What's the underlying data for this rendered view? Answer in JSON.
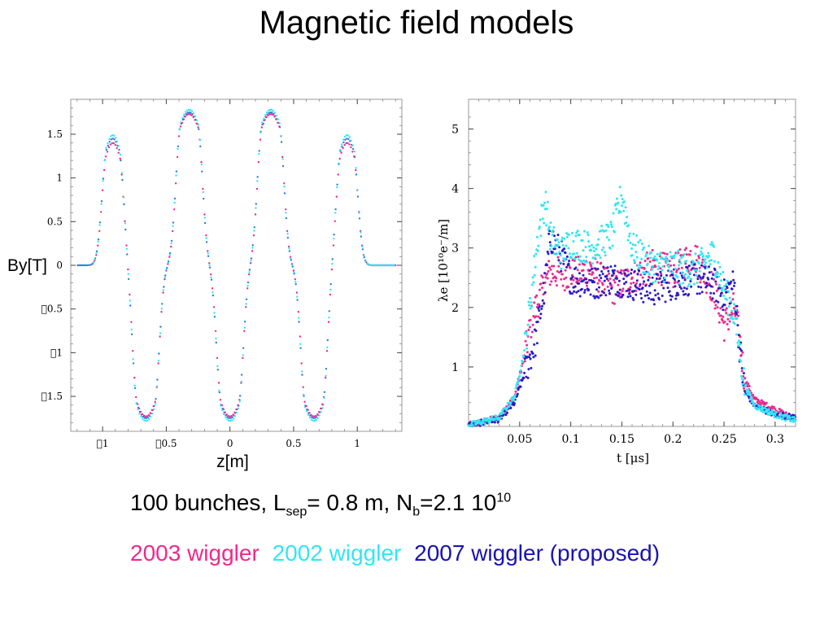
{
  "title": "Magnetic field models",
  "colors": {
    "pink": "#ee2a8c",
    "cyan": "#33e6f2",
    "blue": "#2a7ce6",
    "navy": "#2a1ac8"
  },
  "caption": {
    "line1": {
      "bunches": "100 bunches, L",
      "sep_sub": "sep",
      "sep_val": "= 0.8 m, N",
      "nb_sub": "b",
      "nb_val": "=2.1 10",
      "exp": "10"
    },
    "legend": [
      "2003 wiggler",
      "2002 wiggler",
      "2007 wiggler (proposed)"
    ]
  },
  "chart_data": [
    {
      "type": "scatter",
      "xlabel": "z[m]",
      "ylabel": "By[T]",
      "xlim": [
        -1.25,
        1.35
      ],
      "ylim": [
        -1.9,
        1.9
      ],
      "xticks": [
        -1,
        -0.5,
        0,
        0.5,
        1
      ],
      "xtick_labels": [
        "1",
        "0.5",
        "0",
        "0.5",
        "1"
      ],
      "yticks": [
        1.5,
        1,
        0.5,
        0,
        -0.5,
        -1,
        -1.5
      ],
      "ytick_labels": [
        "1.5",
        "1",
        "0.5",
        "0",
        "0.5",
        "1",
        "1.5"
      ],
      "grid": false,
      "series": [
        {
          "color": "pink",
          "peaks": [
            {
              "z": -0.92,
              "By": 1.4,
              "w": 0.045
            },
            {
              "z": -0.66,
              "By": -1.73,
              "w": 0.065
            },
            {
              "z": -0.32,
              "By": 1.73,
              "w": 0.065
            },
            {
              "z": 0.0,
              "By": -1.73,
              "w": 0.065
            },
            {
              "z": 0.32,
              "By": 1.73,
              "w": 0.065
            },
            {
              "z": 0.66,
              "By": -1.73,
              "w": 0.065
            },
            {
              "z": 0.92,
              "By": 1.4,
              "w": 0.045
            }
          ]
        },
        {
          "color": "cyan",
          "peaks": [
            {
              "z": -0.92,
              "By": 1.49,
              "w": 0.045
            },
            {
              "z": -0.66,
              "By": -1.78,
              "w": 0.065
            },
            {
              "z": -0.32,
              "By": 1.78,
              "w": 0.065
            },
            {
              "z": 0.0,
              "By": -1.78,
              "w": 0.065
            },
            {
              "z": 0.32,
              "By": 1.78,
              "w": 0.065
            },
            {
              "z": 0.66,
              "By": -1.78,
              "w": 0.065
            },
            {
              "z": 0.92,
              "By": 1.49,
              "w": 0.045
            }
          ]
        },
        {
          "color": "blue",
          "peaks": [
            {
              "z": -0.92,
              "By": 1.45,
              "w": 0.045
            },
            {
              "z": -0.66,
              "By": -1.75,
              "w": 0.065
            },
            {
              "z": -0.32,
              "By": 1.75,
              "w": 0.065
            },
            {
              "z": 0.0,
              "By": -1.75,
              "w": 0.065
            },
            {
              "z": 0.32,
              "By": 1.75,
              "w": 0.065
            },
            {
              "z": 0.66,
              "By": -1.75,
              "w": 0.065
            },
            {
              "z": 0.92,
              "By": 1.45,
              "w": 0.045
            }
          ]
        }
      ]
    },
    {
      "type": "scatter",
      "xlabel": "t [μs]",
      "ylabel": "λe [10¹⁰e⁻/m]",
      "xlim": [
        0,
        0.32
      ],
      "ylim": [
        0,
        5.5
      ],
      "xticks": [
        0.05,
        0.1,
        0.15,
        0.2,
        0.25,
        0.3
      ],
      "yticks": [
        1,
        2,
        3,
        4,
        5
      ],
      "grid": false,
      "series": [
        {
          "name": "2003 wiggler",
          "color": "pink",
          "points": [
            [
              0,
              0.02
            ],
            [
              0.03,
              0.15
            ],
            [
              0.045,
              0.5
            ],
            [
              0.055,
              1.2
            ],
            [
              0.062,
              1.8
            ],
            [
              0.07,
              2.2
            ],
            [
              0.08,
              2.6
            ],
            [
              0.1,
              2.55
            ],
            [
              0.12,
              2.65
            ],
            [
              0.14,
              2.3
            ],
            [
              0.16,
              2.5
            ],
            [
              0.18,
              2.7
            ],
            [
              0.2,
              2.6
            ],
            [
              0.22,
              2.9
            ],
            [
              0.24,
              2.3
            ],
            [
              0.25,
              1.7
            ],
            [
              0.26,
              2.0
            ],
            [
              0.265,
              1.5
            ],
            [
              0.27,
              0.8
            ],
            [
              0.28,
              0.45
            ],
            [
              0.3,
              0.28
            ],
            [
              0.32,
              0.12
            ]
          ]
        },
        {
          "name": "2002 wiggler",
          "color": "cyan",
          "points": [
            [
              0,
              0.02
            ],
            [
              0.03,
              0.15
            ],
            [
              0.045,
              0.5
            ],
            [
              0.055,
              1.3
            ],
            [
              0.062,
              2.3
            ],
            [
              0.068,
              3.2
            ],
            [
              0.075,
              3.8
            ],
            [
              0.08,
              3.2
            ],
            [
              0.09,
              2.9
            ],
            [
              0.1,
              3.1
            ],
            [
              0.12,
              3.0
            ],
            [
              0.14,
              3.2
            ],
            [
              0.15,
              3.9
            ],
            [
              0.16,
              3.0
            ],
            [
              0.18,
              2.7
            ],
            [
              0.2,
              2.7
            ],
            [
              0.22,
              2.6
            ],
            [
              0.24,
              2.9
            ],
            [
              0.25,
              2.3
            ],
            [
              0.26,
              1.9
            ],
            [
              0.265,
              1.3
            ],
            [
              0.27,
              0.7
            ],
            [
              0.28,
              0.35
            ],
            [
              0.3,
              0.2
            ],
            [
              0.32,
              0.1
            ]
          ]
        },
        {
          "name": "2007 wiggler (proposed)",
          "color": "navy",
          "points": [
            [
              0,
              0.02
            ],
            [
              0.03,
              0.12
            ],
            [
              0.045,
              0.4
            ],
            [
              0.055,
              0.9
            ],
            [
              0.065,
              1.4
            ],
            [
              0.075,
              2.4
            ],
            [
              0.08,
              3.2
            ],
            [
              0.09,
              2.9
            ],
            [
              0.1,
              2.5
            ],
            [
              0.12,
              2.4
            ],
            [
              0.14,
              2.5
            ],
            [
              0.16,
              2.4
            ],
            [
              0.18,
              2.3
            ],
            [
              0.2,
              2.4
            ],
            [
              0.22,
              2.5
            ],
            [
              0.24,
              2.4
            ],
            [
              0.25,
              2.2
            ],
            [
              0.26,
              2.4
            ],
            [
              0.265,
              1.4
            ],
            [
              0.27,
              0.6
            ],
            [
              0.28,
              0.35
            ],
            [
              0.3,
              0.2
            ],
            [
              0.32,
              0.15
            ]
          ]
        }
      ]
    }
  ]
}
